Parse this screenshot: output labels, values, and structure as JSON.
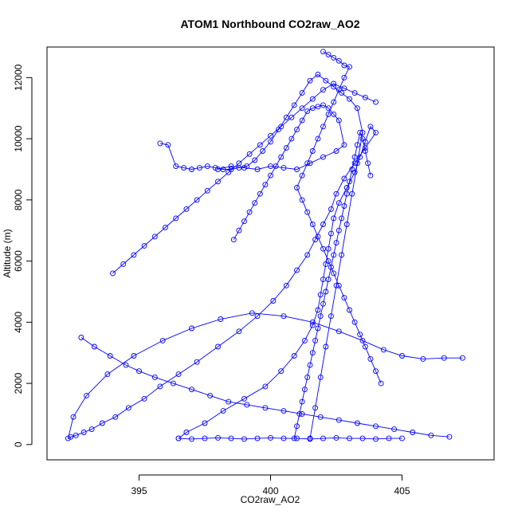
{
  "chart_data": {
    "type": "scatter",
    "title": "ATOM1 Northbound CO2raw_AO2",
    "xlabel": "CO2raw_AO2",
    "ylabel": "Altitude (m)",
    "xlim": [
      391.5,
      408.5
    ],
    "ylim": [
      -500,
      13000
    ],
    "x_ticks": [
      395,
      400,
      405
    ],
    "y_ticks": [
      0,
      2000,
      4000,
      6000,
      8000,
      10000,
      12000
    ],
    "x_tick_labels": [
      "395",
      "400",
      "405"
    ],
    "y_tick_labels": [
      "0",
      "2000",
      "4000",
      "6000",
      "8000",
      "10000",
      "12000"
    ],
    "marker": "open-circle",
    "connected": true,
    "colors": {
      "series": "#0000ff",
      "axis": "#000000",
      "background": "#ffffff"
    },
    "series": [
      {
        "x": [
          396.5,
          396.8,
          397.5,
          398.2,
          399.0,
          399.8,
          400.4,
          400.9,
          401.3,
          401.6,
          401.8,
          401.9,
          402.0,
          402.1,
          402.2,
          402.3,
          402.4,
          402.6,
          402.9,
          403.2,
          403.4,
          403.6,
          403.8,
          404.0,
          403.6,
          403.2,
          402.8,
          402.5,
          402.3,
          402.0,
          401.7,
          401.4,
          401.0,
          400.6,
          400.1,
          399.5,
          398.8,
          398.0,
          397.2,
          396.5,
          395.8,
          395.2,
          394.6,
          394.1,
          393.6,
          393.2,
          392.9,
          392.6,
          392.4,
          392.3,
          392.5,
          393.0,
          393.8,
          394.8,
          395.9,
          397.0,
          398.1,
          399.3,
          400.5,
          401.6,
          402.6,
          403.5,
          404.3,
          405.0,
          405.8,
          406.6,
          407.3
        ],
        "y": [
          200,
          400,
          700,
          1100,
          1500,
          1900,
          2400,
          2900,
          3400,
          3900,
          4400,
          4900,
          5400,
          5900,
          6400,
          6900,
          7400,
          7900,
          8400,
          8900,
          9400,
          9900,
          10400,
          10200,
          9700,
          9200,
          8700,
          8200,
          7700,
          7200,
          6700,
          6200,
          5700,
          5200,
          4700,
          4200,
          3700,
          3200,
          2700,
          2300,
          1900,
          1500,
          1200,
          900,
          700,
          500,
          400,
          300,
          250,
          200,
          900,
          1600,
          2300,
          2900,
          3400,
          3800,
          4100,
          4300,
          4200,
          4000,
          3700,
          3400,
          3100,
          2900,
          2800,
          2830,
          2830
        ]
      },
      {
        "x": [
          401.5,
          401.7,
          401.9,
          402.1,
          402.3,
          402.5,
          402.7,
          402.9,
          403.1,
          403.3,
          403.5,
          403.3,
          403.0,
          402.7,
          402.4,
          402.1,
          401.8,
          401.5,
          401.2,
          400.9,
          400.6,
          400.3,
          400.0,
          399.7,
          399.4,
          399.1,
          398.8,
          398.5,
          398.2,
          397.9,
          397.6,
          397.3,
          397.0,
          396.7,
          396.4,
          396.1,
          395.8
        ],
        "y": [
          200,
          1200,
          2200,
          3200,
          4200,
          5200,
          6200,
          7200,
          8200,
          9200,
          10200,
          11000,
          11300,
          11500,
          11700,
          11900,
          12100,
          11900,
          11500,
          11100,
          10700,
          10300,
          9900,
          9600,
          9300,
          9100,
          9050,
          9000,
          9000,
          9050,
          9100,
          9050,
          9000,
          9050,
          9100,
          9800,
          9850
        ]
      },
      {
        "x": [
          398.0,
          398.5,
          399.0,
          399.5,
          400.0,
          400.5,
          401.0,
          401.5,
          402.0,
          402.5,
          402.8,
          402.6,
          402.4,
          402.2,
          402.0,
          401.8,
          401.6,
          401.4,
          401.2,
          401.0,
          400.8,
          400.6,
          400.4,
          400.2,
          400.0,
          399.8,
          399.6,
          399.4,
          399.2,
          399.0,
          398.8,
          398.6
        ],
        "y": [
          9000,
          9100,
          9050,
          9000,
          9100,
          9050,
          9000,
          9200,
          9400,
          9600,
          9800,
          10600,
          10800,
          11000,
          11100,
          11050,
          11000,
          10900,
          10600,
          10300,
          10000,
          9700,
          9400,
          9100,
          8800,
          8500,
          8200,
          7900,
          7600,
          7300,
          7000,
          6700
        ]
      },
      {
        "x": [
          402.0,
          402.2,
          402.4,
          402.6,
          402.8,
          403.0,
          402.8,
          402.6,
          402.4,
          402.2,
          402.0,
          401.8,
          401.6,
          401.4,
          401.2,
          401.0,
          401.2,
          401.4,
          401.6,
          401.8,
          402.0,
          402.2,
          402.4,
          402.6,
          402.8,
          403.0,
          403.2,
          403.4,
          403.6,
          403.8,
          404.0,
          404.2
        ],
        "y": [
          12850,
          12750,
          12650,
          12550,
          12400,
          12350,
          12000,
          11600,
          11200,
          10800,
          10400,
          10000,
          9600,
          9200,
          8800,
          8400,
          8000,
          7600,
          7200,
          6800,
          6400,
          6000,
          5600,
          5200,
          4800,
          4400,
          4000,
          3600,
          3200,
          2800,
          2400,
          2000
        ]
      },
      {
        "x": [
          392.8,
          393.3,
          393.9,
          394.5,
          395.0,
          395.6,
          396.3,
          397.0,
          397.7,
          398.4,
          399.1,
          399.8,
          400.5,
          401.2,
          401.9,
          402.6,
          403.3,
          404.0,
          404.7,
          405.4,
          406.1,
          406.8
        ],
        "y": [
          3500,
          3200,
          2900,
          2600,
          2400,
          2200,
          2000,
          1800,
          1600,
          1400,
          1300,
          1200,
          1100,
          1000,
          900,
          800,
          700,
          600,
          500,
          400,
          300,
          250
        ]
      },
      {
        "x": [
          394.0,
          394.4,
          394.8,
          395.2,
          395.6,
          396.0,
          396.4,
          396.8,
          397.2,
          397.6,
          398.0,
          398.4,
          398.8,
          399.2,
          399.6,
          400.0,
          400.4,
          400.8,
          401.2,
          401.6,
          402.0,
          402.4,
          402.8,
          403.2,
          403.6,
          404.0
        ],
        "y": [
          5600,
          5900,
          6200,
          6500,
          6800,
          7100,
          7400,
          7700,
          8000,
          8300,
          8600,
          8900,
          9200,
          9500,
          9800,
          10100,
          10400,
          10700,
          11000,
          11300,
          11600,
          11800,
          11650,
          11500,
          11350,
          11200
        ]
      },
      {
        "x": [
          400.9,
          401.0,
          401.1,
          401.2,
          401.3,
          401.4,
          401.5,
          401.6,
          401.7,
          401.8,
          401.9,
          402.0,
          402.1,
          402.2,
          402.3,
          402.4,
          402.5,
          402.6,
          402.7,
          402.8,
          402.9,
          403.0,
          403.1,
          403.2,
          403.3,
          403.4,
          403.5,
          403.6,
          403.7,
          403.8
        ],
        "y": [
          200,
          600,
          1000,
          1400,
          1800,
          2200,
          2600,
          3000,
          3400,
          3800,
          4200,
          4600,
          5000,
          5400,
          5800,
          6200,
          6600,
          7000,
          7400,
          7800,
          8200,
          8600,
          9000,
          9400,
          9800,
          10200,
          10000,
          9600,
          9200,
          8800
        ]
      },
      {
        "x": [
          396.5,
          397.0,
          397.5,
          398.0,
          398.5,
          399.0,
          399.5,
          400.0,
          400.5,
          401.0,
          401.5,
          402.0,
          402.5,
          403.0,
          403.5,
          404.0,
          404.5,
          405.0
        ],
        "y": [
          200,
          180,
          200,
          220,
          200,
          180,
          200,
          220,
          200,
          200,
          180,
          200,
          220,
          200,
          200,
          180,
          200,
          200
        ]
      }
    ]
  }
}
